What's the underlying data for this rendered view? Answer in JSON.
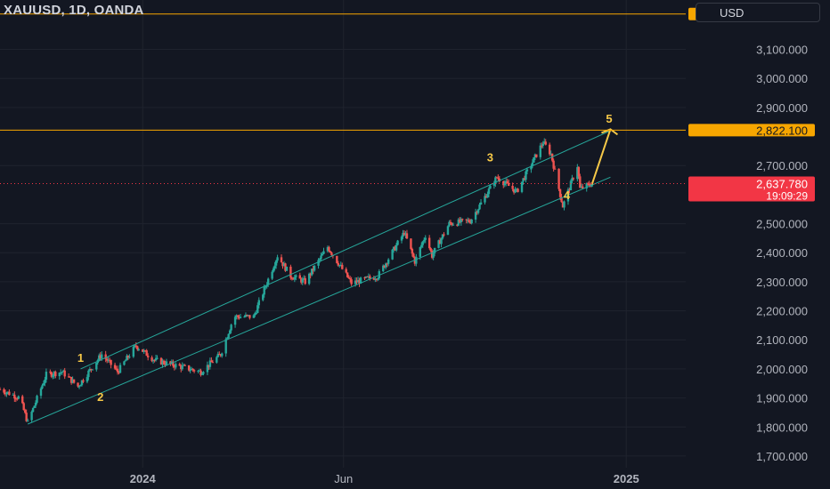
{
  "header": {
    "symbol_title": "XAUUSD, 1D, OANDA",
    "currency_label": "USD"
  },
  "colors": {
    "background": "#131722",
    "grid": "#1f232e",
    "up": "#26a69a",
    "down": "#ef5350",
    "level_line": "#f7a600",
    "channel": "#26a69a",
    "wave_label": "#f7c948",
    "projection_arrow": "#f7c948",
    "price_tag_red": "#f23645",
    "axis_text": "#b2b5be"
  },
  "chart_data": {
    "type": "candlestick",
    "symbol": "XAUUSD",
    "timeframe": "1D",
    "source": "OANDA",
    "y_axis": {
      "ticks": [
        {
          "value": 3100,
          "label": "3,100.000"
        },
        {
          "value": 3000,
          "label": "3,000.000"
        },
        {
          "value": 2900,
          "label": "2,900.000"
        },
        {
          "value": 2700,
          "label": "2,700.000"
        },
        {
          "value": 2500,
          "label": "2,500.000"
        },
        {
          "value": 2400,
          "label": "2,400.000"
        },
        {
          "value": 2300,
          "label": "2,300.000"
        },
        {
          "value": 2200,
          "label": "2,200.000"
        },
        {
          "value": 2100,
          "label": "2,100.000"
        },
        {
          "value": 2000,
          "label": "2,000.000"
        },
        {
          "value": 1900,
          "label": "1,900.000"
        },
        {
          "value": 1800,
          "label": "1,800.000"
        },
        {
          "value": 1700,
          "label": "1,700.000"
        }
      ],
      "ylim": [
        1660,
        3270
      ]
    },
    "x_axis": {
      "ticks": [
        {
          "date": "2024-01-01",
          "label": "2024"
        },
        {
          "date": "2024-06-01",
          "label": "Jun"
        },
        {
          "date": "2025-01-01",
          "label": "2025"
        }
      ],
      "xlim": [
        "2023-09-15",
        "2025-02-15"
      ]
    },
    "price_levels": [
      {
        "value": 3221.809,
        "label": "3,221.809",
        "kind": "horizontal-line"
      },
      {
        "value": 2822.1,
        "label": "2,822.100",
        "kind": "horizontal-line"
      }
    ],
    "current_price": {
      "value": 2637.78,
      "label": "2,637.780",
      "countdown": "19:09:29"
    },
    "wave_labels": [
      {
        "text": "1",
        "date": "2023-11-15",
        "price": 2025
      },
      {
        "text": "2",
        "date": "2023-11-30",
        "price": 1890
      },
      {
        "text": "3",
        "date": "2024-09-20",
        "price": 2715
      },
      {
        "text": "4",
        "date": "2024-11-17",
        "price": 2585
      },
      {
        "text": "5",
        "date": "2024-12-19",
        "price": 2848
      }
    ],
    "channel": {
      "upper": [
        {
          "date": "2023-11-15",
          "price": 2000
        },
        {
          "date": "2024-12-20",
          "price": 2820
        }
      ],
      "lower": [
        {
          "date": "2023-10-06",
          "price": 1810
        },
        {
          "date": "2024-12-20",
          "price": 2660
        }
      ]
    },
    "projection": {
      "from": {
        "date": "2024-12-06",
        "price": 2635
      },
      "to": {
        "date": "2024-12-20",
        "price": 2825
      }
    },
    "anchors": [
      {
        "date": "2023-09-15",
        "price": 1930
      },
      {
        "date": "2023-09-30",
        "price": 1900
      },
      {
        "date": "2023-10-06",
        "price": 1815
      },
      {
        "date": "2023-10-20",
        "price": 1980
      },
      {
        "date": "2023-11-01",
        "price": 1990
      },
      {
        "date": "2023-11-13",
        "price": 1940
      },
      {
        "date": "2023-12-01",
        "price": 2050
      },
      {
        "date": "2023-12-13",
        "price": 1990
      },
      {
        "date": "2023-12-27",
        "price": 2080
      },
      {
        "date": "2024-01-10",
        "price": 2030
      },
      {
        "date": "2024-02-14",
        "price": 1990
      },
      {
        "date": "2024-02-29",
        "price": 2050
      },
      {
        "date": "2024-03-10",
        "price": 2180
      },
      {
        "date": "2024-03-25",
        "price": 2180
      },
      {
        "date": "2024-04-12",
        "price": 2390
      },
      {
        "date": "2024-04-22",
        "price": 2320
      },
      {
        "date": "2024-05-03",
        "price": 2300
      },
      {
        "date": "2024-05-20",
        "price": 2420
      },
      {
        "date": "2024-06-07",
        "price": 2295
      },
      {
        "date": "2024-06-27",
        "price": 2320
      },
      {
        "date": "2024-07-17",
        "price": 2470
      },
      {
        "date": "2024-07-25",
        "price": 2370
      },
      {
        "date": "2024-08-02",
        "price": 2460
      },
      {
        "date": "2024-08-07",
        "price": 2390
      },
      {
        "date": "2024-08-20",
        "price": 2500
      },
      {
        "date": "2024-09-05",
        "price": 2510
      },
      {
        "date": "2024-09-25",
        "price": 2660
      },
      {
        "date": "2024-10-10",
        "price": 2610
      },
      {
        "date": "2024-10-30",
        "price": 2780
      },
      {
        "date": "2024-11-05",
        "price": 2740
      },
      {
        "date": "2024-11-14",
        "price": 2560
      },
      {
        "date": "2024-11-25",
        "price": 2700
      },
      {
        "date": "2024-11-27",
        "price": 2620
      },
      {
        "date": "2024-12-06",
        "price": 2638
      }
    ]
  }
}
